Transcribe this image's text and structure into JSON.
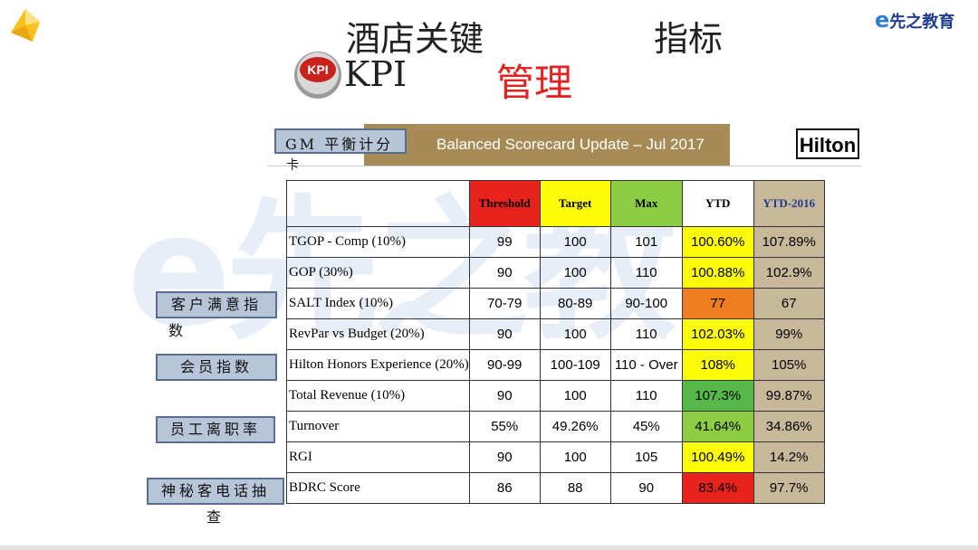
{
  "header": {
    "title_part1": "酒店关键",
    "title_part2": "指标",
    "kpi_label": "KPI",
    "kpi_badge": "KPI",
    "kpi_red": "管理",
    "brand": "先之教育",
    "brand_mark": "e"
  },
  "watermark": "e先之教育",
  "scorecard": {
    "gm_label": "GM 平衡计分",
    "gm_label_tail": "卡",
    "banner": "Balanced Scorecard Update – Jul 2017",
    "hilton": "Hilton"
  },
  "side_labels": {
    "customer_line1": "客户满意指",
    "customer_line2": "数",
    "member": "会员指数",
    "turnover": "员工离职率",
    "mystery_line1": "神秘客电话抽",
    "mystery_line2": "查"
  },
  "table": {
    "headers": [
      "Threshold",
      "Target",
      "Max",
      "YTD",
      "YTD-2016"
    ],
    "rows": [
      {
        "name": "TGOP - Comp (10%)",
        "threshold": "99",
        "target": "100",
        "max": "101",
        "ytd": "100.60%",
        "ytd2016": "107.89%"
      },
      {
        "name": "GOP  (30%)",
        "threshold": "90",
        "target": "100",
        "max": "110",
        "ytd": "100.88%",
        "ytd2016": "102.9%"
      },
      {
        "name": "SALT Index (10%)",
        "threshold": "70-79",
        "target": "80-89",
        "max": "90-100",
        "ytd": "77",
        "ytd2016": "67"
      },
      {
        "name": "RevPar vs Budget (20%)",
        "threshold": "90",
        "target": "100",
        "max": "110",
        "ytd": "102.03%",
        "ytd2016": "99%"
      },
      {
        "name": "Hilton Honors Experience (20%)",
        "threshold": "90-99",
        "target": "100-109",
        "max": "110 - Over",
        "ytd": "108%",
        "ytd2016": "105%"
      },
      {
        "name": "Total Revenue  (10%)",
        "threshold": "90",
        "target": "100",
        "max": "110",
        "ytd": "107.3%",
        "ytd2016": "99.87%"
      },
      {
        "name": "Turnover",
        "threshold": "55%",
        "target": "49.26%",
        "max": "45%",
        "ytd": "41.64%",
        "ytd2016": "34.86%"
      },
      {
        "name": "RGI",
        "threshold": "90",
        "target": "100",
        "max": "105",
        "ytd": "100.49%",
        "ytd2016": "14.2%"
      },
      {
        "name": "BDRC Score",
        "threshold": "86",
        "target": "88",
        "max": "90",
        "ytd": "83.4%",
        "ytd2016": "97.7%"
      }
    ]
  },
  "colors": {
    "threshold": "#e8231c",
    "target": "#fcfc0a",
    "max": "#8ccd44",
    "ytd_header": "#ffffff",
    "ytd2016": "#c8b89a",
    "ytd_yellow": "#fcfc0a",
    "ytd_orange": "#ef7d22",
    "ytd_green": "#56b848",
    "ytd_lightgreen": "#8ccd44",
    "ytd_red": "#e8231c",
    "ytd2016_header_text": "#1f3c8f"
  }
}
